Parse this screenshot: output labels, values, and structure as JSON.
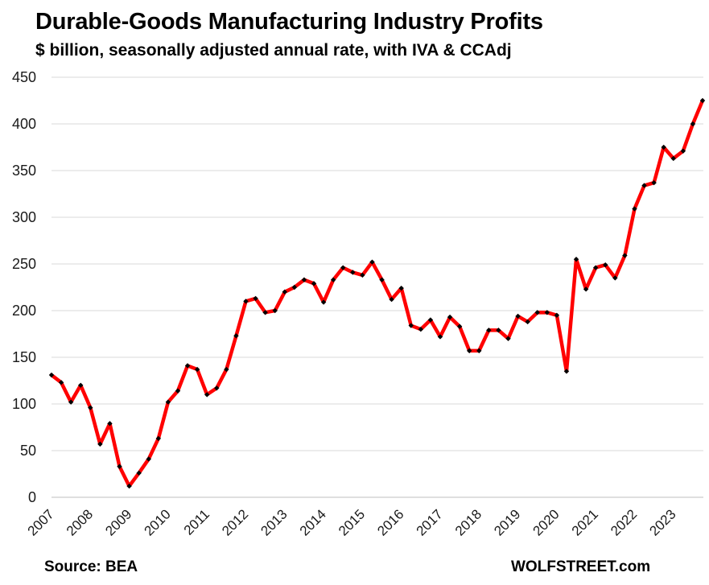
{
  "chart_data": {
    "type": "line",
    "title": "Durable-Goods Manufacturing Industry Profits",
    "subtitle": "$ billion, seasonally adjusted annual rate, with IVA & CCAdj",
    "source": "Source: BEA",
    "brand": "WOLFSTREET.com",
    "ylim": [
      0,
      450
    ],
    "y_ticks": [
      "0",
      "50",
      "100",
      "150",
      "200",
      "250",
      "300",
      "350",
      "400",
      "450"
    ],
    "x_ticks": [
      "2007",
      "2008",
      "2009",
      "2010",
      "2011",
      "2012",
      "2013",
      "2014",
      "2015",
      "2016",
      "2017",
      "2018",
      "2019",
      "2020",
      "2021",
      "2022",
      "2023"
    ],
    "grid": true,
    "legend": "none",
    "line_color": "#ff0000",
    "marker_color": "#000000",
    "series": [
      {
        "values": [
          131,
          123,
          102,
          120,
          96,
          57,
          79,
          33,
          12,
          26,
          41,
          63,
          102,
          114,
          141,
          137,
          110,
          117,
          137,
          173,
          210,
          213,
          198,
          200,
          220,
          225,
          233,
          229,
          209,
          233,
          246,
          241,
          238,
          252,
          233,
          212,
          224,
          184,
          180,
          190,
          172,
          193,
          183,
          157,
          157,
          179,
          179,
          170,
          194,
          188,
          198,
          198,
          195,
          135,
          255,
          223,
          246,
          249,
          235,
          259,
          309,
          334,
          337,
          375,
          363,
          371,
          400,
          425
        ]
      }
    ]
  }
}
